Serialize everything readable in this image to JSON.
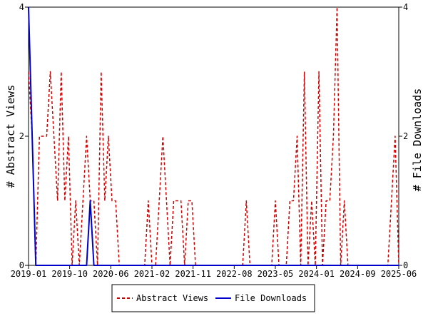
{
  "chart_data": {
    "type": "line",
    "x_tick_labels": [
      "2019-01",
      "2019-10",
      "2020-06",
      "2021-02",
      "2021-11",
      "2022-08",
      "2023-05",
      "2024-01",
      "2024-09",
      "2025-06"
    ],
    "y_left_ticks": [
      "0",
      "2",
      "4"
    ],
    "y_right_ticks": [
      "0",
      "2",
      "4"
    ],
    "ylabel_left": "# Abstract Views",
    "ylabel_right": "# File Downloads",
    "ylim": [
      0,
      4
    ],
    "grid": false,
    "legend_placement": "bottom",
    "series": [
      {
        "name": "Abstract Views",
        "color": "#cc0000",
        "style": "dashed",
        "values": [
          3,
          2,
          0,
          2,
          2,
          2,
          3,
          2,
          1,
          3,
          1,
          2,
          0,
          1,
          0,
          1,
          2,
          1,
          1,
          0,
          3,
          1,
          2,
          1,
          1,
          0,
          0,
          0,
          0,
          0,
          0,
          0,
          0,
          1,
          0,
          0,
          1,
          2,
          1,
          0,
          1,
          1,
          1,
          0,
          1,
          1,
          0,
          0,
          0,
          0,
          0,
          0,
          0,
          0,
          0,
          0,
          0,
          0,
          0,
          0,
          1,
          0,
          0,
          0,
          0,
          0,
          0,
          0,
          1,
          0,
          0,
          0,
          1,
          1,
          2,
          0,
          3,
          0,
          1,
          0,
          3,
          0,
          1,
          1,
          2,
          4,
          0,
          1,
          0,
          0,
          0,
          0,
          0,
          0,
          0,
          0,
          0,
          0,
          0,
          0,
          1,
          2,
          0
        ]
      },
      {
        "name": "File Downloads",
        "color": "#0000cc",
        "style": "solid",
        "values": [
          4,
          2,
          0,
          0,
          0,
          0,
          0,
          0,
          0,
          0,
          0,
          0,
          0,
          0,
          0,
          0,
          0,
          1,
          0,
          0,
          0,
          0,
          0,
          0,
          0,
          0,
          0,
          0,
          0,
          0,
          0,
          0,
          0,
          0,
          0,
          0,
          0,
          0,
          0,
          0,
          0,
          0,
          0,
          0,
          0,
          0,
          0,
          0,
          0,
          0,
          0,
          0,
          0,
          0,
          0,
          0,
          0,
          0,
          0,
          0,
          0,
          0,
          0,
          0,
          0,
          0,
          0,
          0,
          0,
          0,
          0,
          0,
          0,
          0,
          0,
          0,
          0,
          0,
          0,
          0,
          0,
          0,
          0,
          0,
          0,
          0,
          0,
          0,
          0,
          0,
          0,
          0,
          0,
          0,
          0,
          0,
          0,
          0,
          0,
          0,
          0,
          0,
          0
        ]
      }
    ]
  }
}
